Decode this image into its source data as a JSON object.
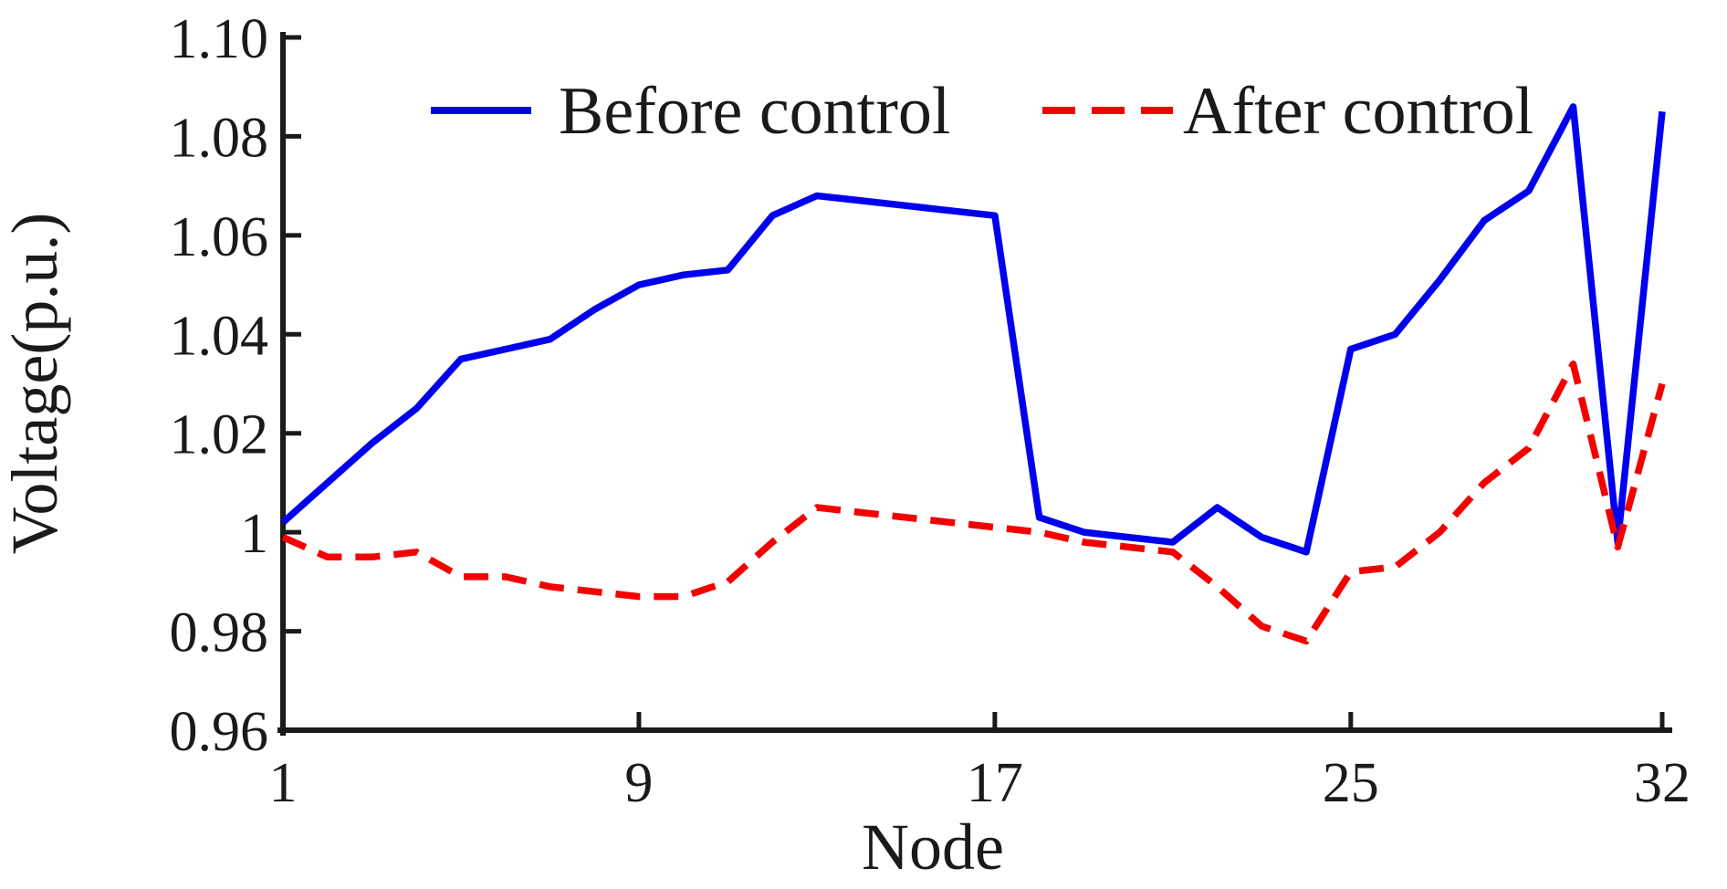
{
  "chart_data": {
    "type": "line",
    "title": "",
    "xlabel": "Node",
    "ylabel": "Voltage(p.u.)",
    "grid": false,
    "legend_position": "top-inside",
    "axis_color": "#1a1a1a",
    "xlim": [
      1,
      32
    ],
    "ylim": [
      0.96,
      1.1
    ],
    "x_ticks": [
      1,
      9,
      17,
      25,
      32
    ],
    "x_tick_labels": [
      "1",
      "9",
      "17",
      "25",
      "32"
    ],
    "y_ticks": [
      0.96,
      0.98,
      1.0,
      1.02,
      1.04,
      1.06,
      1.08,
      1.1
    ],
    "y_tick_labels": [
      "0.96",
      "0.98",
      "1",
      "1.02",
      "1.04",
      "1.06",
      "1.08",
      "1.10"
    ],
    "x": [
      1,
      2,
      3,
      4,
      5,
      6,
      7,
      8,
      9,
      10,
      11,
      12,
      13,
      14,
      15,
      16,
      17,
      18,
      19,
      20,
      21,
      22,
      23,
      24,
      25,
      26,
      27,
      28,
      29,
      30,
      31,
      32
    ],
    "series": [
      {
        "name": "Before control",
        "color": "#0000ee",
        "style": "solid",
        "values": [
          1.002,
          1.01,
          1.018,
          1.025,
          1.035,
          1.037,
          1.039,
          1.045,
          1.05,
          1.052,
          1.053,
          1.064,
          1.068,
          1.067,
          1.066,
          1.065,
          1.064,
          1.003,
          1.0,
          0.999,
          0.998,
          1.005,
          0.999,
          0.996,
          1.037,
          1.04,
          1.051,
          1.063,
          1.069,
          1.086,
          0.998,
          1.085
        ]
      },
      {
        "name": "After control",
        "color": "#f40000",
        "style": "dashed",
        "values": [
          0.999,
          0.995,
          0.995,
          0.996,
          0.991,
          0.991,
          0.989,
          0.988,
          0.987,
          0.987,
          0.99,
          0.998,
          1.005,
          1.004,
          1.003,
          1.002,
          1.001,
          1.0,
          0.998,
          0.997,
          0.996,
          0.989,
          0.981,
          0.978,
          0.992,
          0.993,
          1.0,
          1.01,
          1.017,
          1.034,
          0.997,
          1.03
        ]
      }
    ]
  }
}
